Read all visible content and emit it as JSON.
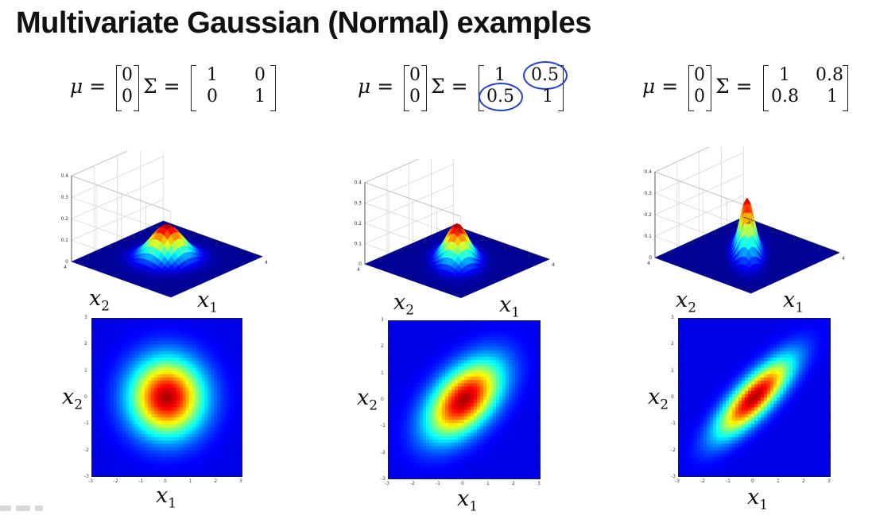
{
  "slide": {
    "title": "Multivariate Gaussian (Normal) examples"
  },
  "examples": [
    {
      "mu_label": "μ =",
      "sigma_label": "Σ =",
      "mu": [
        "0",
        "0"
      ],
      "sigma": [
        [
          "1",
          "0"
        ],
        [
          "0",
          "1"
        ]
      ],
      "surface_ticks": {
        "z": [
          "0.4",
          "0.3",
          "0.2",
          "0.1",
          "0"
        ],
        "x1": [
          "-4",
          "-2",
          "0",
          "2",
          "4"
        ],
        "x2": [
          "4",
          "2",
          "0",
          "-2",
          "-4"
        ]
      },
      "contour_ticks": {
        "x": [
          "-3",
          "-2",
          "-1",
          "0",
          "1",
          "2",
          "3"
        ],
        "y": [
          "3",
          "2",
          "1",
          "0",
          "-1",
          "-2",
          "-3"
        ]
      },
      "xlabel": "x",
      "xlabel_sub": "1",
      "ylabel": "x",
      "ylabel_sub": "2",
      "circled_cells": []
    },
    {
      "mu_label": "μ =",
      "sigma_label": "Σ =",
      "mu": [
        "0",
        "0"
      ],
      "sigma": [
        [
          "1",
          "0.5"
        ],
        [
          "0.5",
          "1"
        ]
      ],
      "surface_ticks": {
        "z": [
          "0.4",
          "0.3",
          "0.2",
          "0.1",
          "0"
        ],
        "x1": [
          "-4",
          "-2",
          "0",
          "2",
          "4"
        ],
        "x2": [
          "4",
          "2",
          "0",
          "-2",
          "-4"
        ]
      },
      "contour_ticks": {
        "x": [
          "-3",
          "-2",
          "-1",
          "0",
          "1",
          "2",
          "3"
        ],
        "y": [
          "3",
          "2",
          "1",
          "0",
          "-1",
          "-2",
          "-3"
        ]
      },
      "xlabel": "x",
      "xlabel_sub": "1",
      "ylabel": "x",
      "ylabel_sub": "2",
      "circled_cells": [
        "0,1",
        "1,0"
      ],
      "annotation_color": "#1f3fd8"
    },
    {
      "mu_label": "μ =",
      "sigma_label": "Σ =",
      "mu": [
        "0",
        "0"
      ],
      "sigma": [
        [
          "1",
          "0.8"
        ],
        [
          "0.8",
          "1"
        ]
      ],
      "surface_ticks": {
        "z": [
          "0.4",
          "0.3",
          "0.2",
          "0.1",
          "0"
        ],
        "x1": [
          "-4",
          "-2",
          "0",
          "2",
          "4"
        ],
        "x2": [
          "4",
          "2",
          "0",
          "-2",
          "-4"
        ]
      },
      "contour_ticks": {
        "x": [
          "-3",
          "-2",
          "-1",
          "0",
          "1",
          "2",
          "3"
        ],
        "y": [
          "3",
          "2",
          "1",
          "0",
          "-1",
          "-2",
          "-3"
        ]
      },
      "xlabel": "x",
      "xlabel_sub": "1",
      "ylabel": "x",
      "ylabel_sub": "2",
      "circled_cells": []
    }
  ],
  "colormap": "jet"
}
